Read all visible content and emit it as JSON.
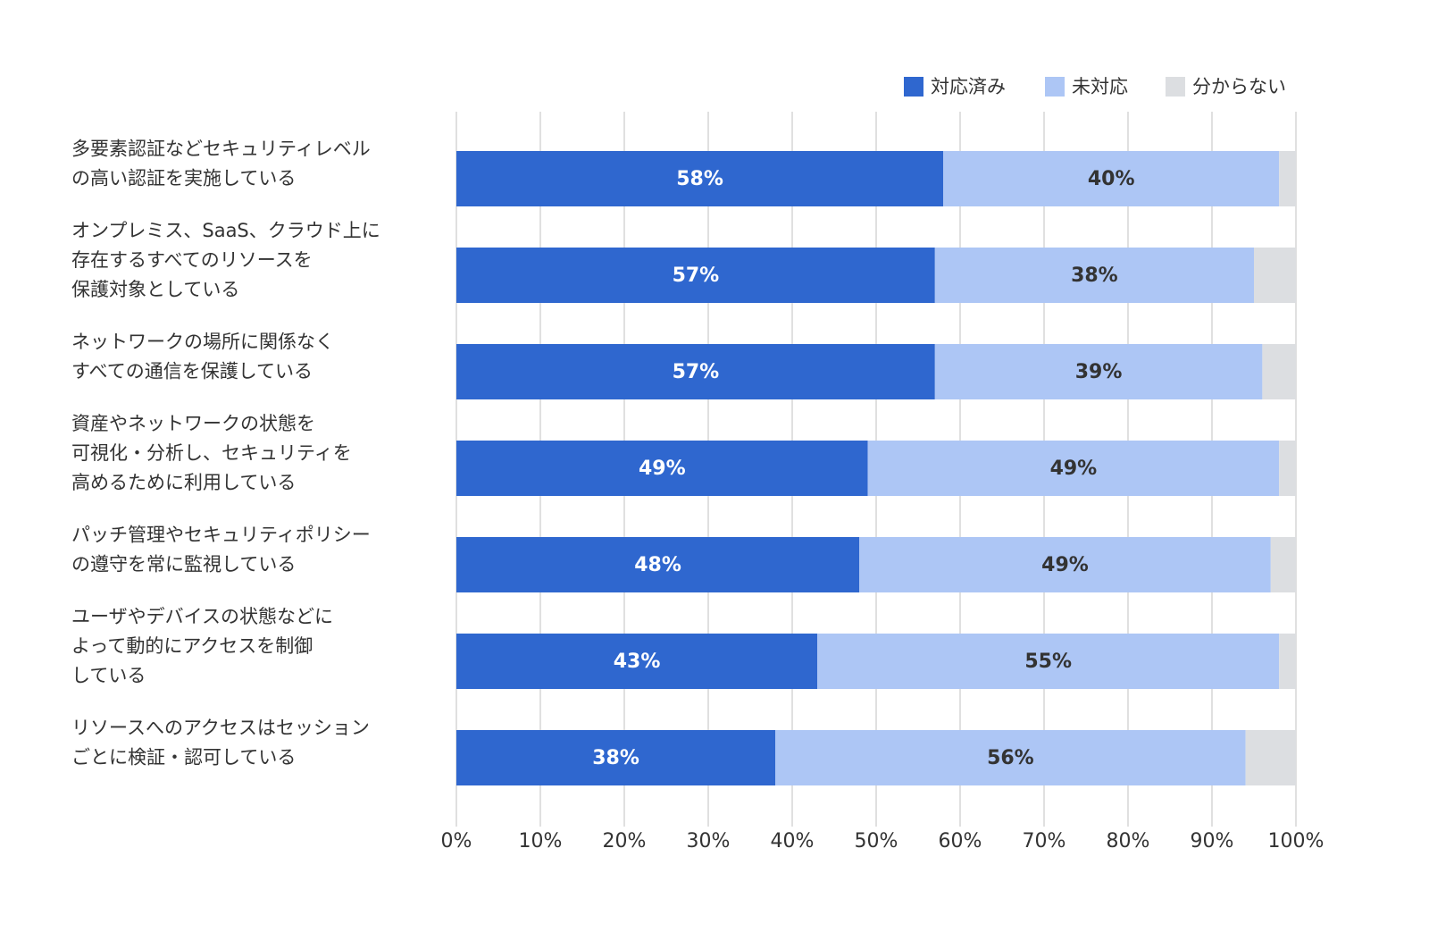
{
  "chart_data": {
    "type": "stacked-barh",
    "categories": [
      [
        "多要素認証などセキュリティレベル",
        "の高い認証を実施している"
      ],
      [
        "オンプレミス、SaaS、クラウド上に",
        "存在するすべてのリソースを",
        "保護対象としている"
      ],
      [
        "ネットワークの場所に関係なく",
        "すべての通信を保護している"
      ],
      [
        "資産やネットワークの状態を",
        "可視化・分析し、セキュリティを",
        "高めるために利用している"
      ],
      [
        "パッチ管理やセキュリティポリシー",
        "の遵守を常に監視している"
      ],
      [
        "ユーザやデバイスの状態などに",
        "よって動的にアクセスを制御",
        "している"
      ],
      [
        "リソースへのアクセスはセッション",
        "ごとに検証・認可している"
      ]
    ],
    "series": [
      {
        "name": "対応済み",
        "color": "#2f67cf",
        "values": [
          58,
          57,
          57,
          49,
          48,
          43,
          38
        ],
        "value_labels": [
          "58%",
          "57%",
          "57%",
          "49%",
          "48%",
          "43%",
          "38%"
        ]
      },
      {
        "name": "未対応",
        "color": "#adc6f5",
        "values": [
          40,
          38,
          39,
          49,
          49,
          55,
          56
        ],
        "value_labels": [
          "40%",
          "38%",
          "39%",
          "49%",
          "49%",
          "55%",
          "56%"
        ]
      },
      {
        "name": "分からない",
        "color": "#dcdee1",
        "values": [
          2,
          5,
          4,
          2,
          3,
          2,
          6
        ]
      }
    ],
    "xlim": [
      0,
      100
    ],
    "xticks": [
      {
        "value": 0,
        "label": "0%"
      },
      {
        "value": 10,
        "label": "10%"
      },
      {
        "value": 20,
        "label": "20%"
      },
      {
        "value": 30,
        "label": "30%"
      },
      {
        "value": 40,
        "label": "40%"
      },
      {
        "value": 50,
        "label": "50%"
      },
      {
        "value": 60,
        "label": "60%"
      },
      {
        "value": 70,
        "label": "70%"
      },
      {
        "value": 80,
        "label": "80%"
      },
      {
        "value": 90,
        "label": "90%"
      },
      {
        "value": 100,
        "label": "100%"
      }
    ],
    "grid": true,
    "legend": "top-right"
  }
}
